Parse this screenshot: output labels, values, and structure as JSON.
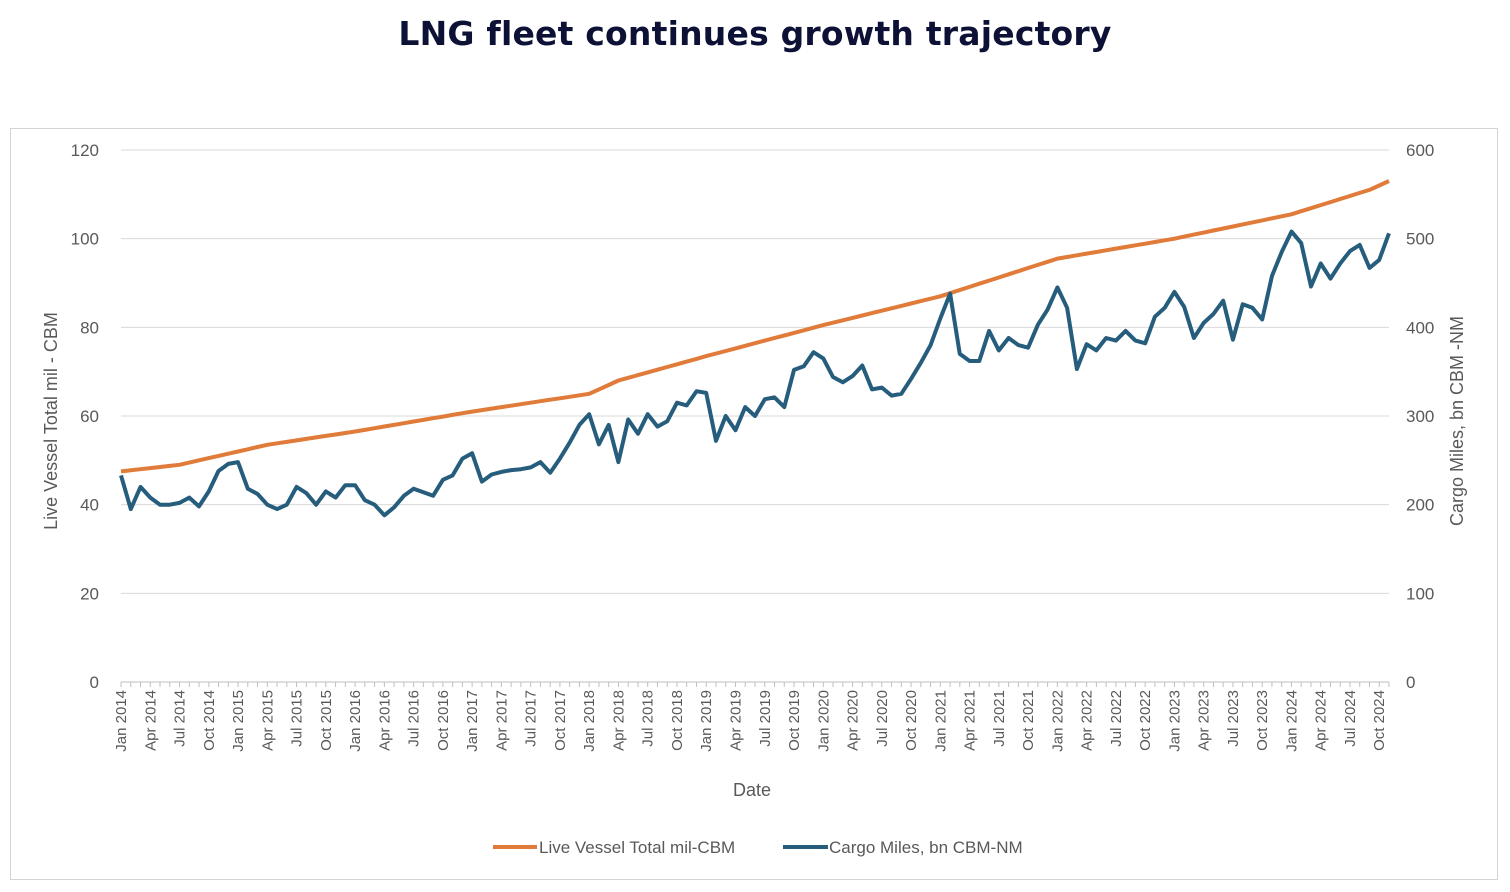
{
  "title": "LNG fleet continues growth trajectory",
  "chart_data": {
    "type": "line",
    "title": "LNG fleet continues growth trajectory",
    "xlabel": "Date",
    "ylabel_left": "Live Vessel Total mil    - CBM",
    "ylabel_right": "Cargo Miles, bn CBM   -NM",
    "ylim_left": [
      0,
      120
    ],
    "ylim_right": [
      0,
      600
    ],
    "yticks_left": [
      "0",
      "20",
      "40",
      "60",
      "80",
      "100",
      "120"
    ],
    "yticks_right": [
      "0",
      "100",
      "200",
      "300",
      "400",
      "500",
      "600"
    ],
    "grid": true,
    "legend_position": "bottom",
    "x_start": "Jan 2014",
    "x_tick_labels": [
      "Jan 2014",
      "Apr 2014",
      "Jul 2014",
      "Oct 2014",
      "Jan 2015",
      "Apr 2015",
      "Jul 2015",
      "Oct 2015",
      "Jan 2016",
      "Apr 2016",
      "Jul 2016",
      "Oct 2016",
      "Jan 2017",
      "Apr 2017",
      "Jul 2017",
      "Oct 2017",
      "Jan 2018",
      "Apr 2018",
      "Jul 2018",
      "Oct 2018",
      "Jan 2019",
      "Apr 2019",
      "Jul 2019",
      "Oct 2019",
      "Jan 2020",
      "Apr 2020",
      "Jul 2020",
      "Oct 2020",
      "Jan 2021",
      "Apr 2021",
      "Jul 2021",
      "Oct 2021",
      "Jan 2022",
      "Apr 2022",
      "Jul 2022",
      "Oct 2022",
      "Jan 2023",
      "Apr 2023",
      "Jul 2023",
      "Oct 2023",
      "Jan 2024",
      "Apr 2024",
      "Jul 2024",
      "Oct 2024"
    ],
    "series": [
      {
        "name": "Live Vessel Total  mil-CBM",
        "axis": "left",
        "color": "#e07b39",
        "knots": [
          [
            "Jan 2014",
            47.5
          ],
          [
            "Jul 2014",
            49
          ],
          [
            "Jan 2015",
            52
          ],
          [
            "Apr 2015",
            53.5
          ],
          [
            "Jan 2016",
            56.5
          ],
          [
            "Jan 2017",
            61
          ],
          [
            "Jan 2018",
            65
          ],
          [
            "Apr 2018",
            68
          ],
          [
            "Jan 2019",
            73.5
          ],
          [
            "Jan 2020",
            80.5
          ],
          [
            "Jan 2021",
            87
          ],
          [
            "Jan 2022",
            95.5
          ],
          [
            "Jan 2023",
            100
          ],
          [
            "Jan 2024",
            105.5
          ],
          [
            "Sep 2024",
            111
          ],
          [
            "Nov 2024",
            113
          ]
        ]
      },
      {
        "name": "Cargo Miles, bn CBM-NM",
        "axis": "right",
        "color": "#265d7c",
        "values": [
          233,
          195,
          220,
          208,
          200,
          200,
          202,
          208,
          198,
          215,
          238,
          246,
          248,
          218,
          212,
          200,
          195,
          200,
          220,
          213,
          200,
          215,
          208,
          222,
          222,
          205,
          200,
          188,
          197,
          210,
          218,
          214,
          210,
          228,
          233,
          252,
          258,
          226,
          234,
          237,
          239,
          240,
          242,
          248,
          236,
          252,
          270,
          290,
          302,
          268,
          290,
          248,
          296,
          280,
          302,
          288,
          294,
          315,
          312,
          328,
          326,
          272,
          300,
          284,
          310,
          300,
          319,
          321,
          310,
          352,
          356,
          372,
          365,
          344,
          338,
          345,
          357,
          330,
          332,
          323,
          325,
          342,
          360,
          380,
          410,
          438,
          370,
          362,
          362,
          396,
          374,
          388,
          380,
          377,
          403,
          420,
          445,
          422,
          353,
          381,
          374,
          388,
          385,
          396,
          385,
          382,
          412,
          422,
          440,
          423,
          388,
          405,
          415,
          430,
          386,
          426,
          422,
          409,
          458,
          485,
          508,
          495,
          446,
          472,
          455,
          472,
          486,
          493,
          467,
          476,
          506
        ]
      }
    ]
  }
}
